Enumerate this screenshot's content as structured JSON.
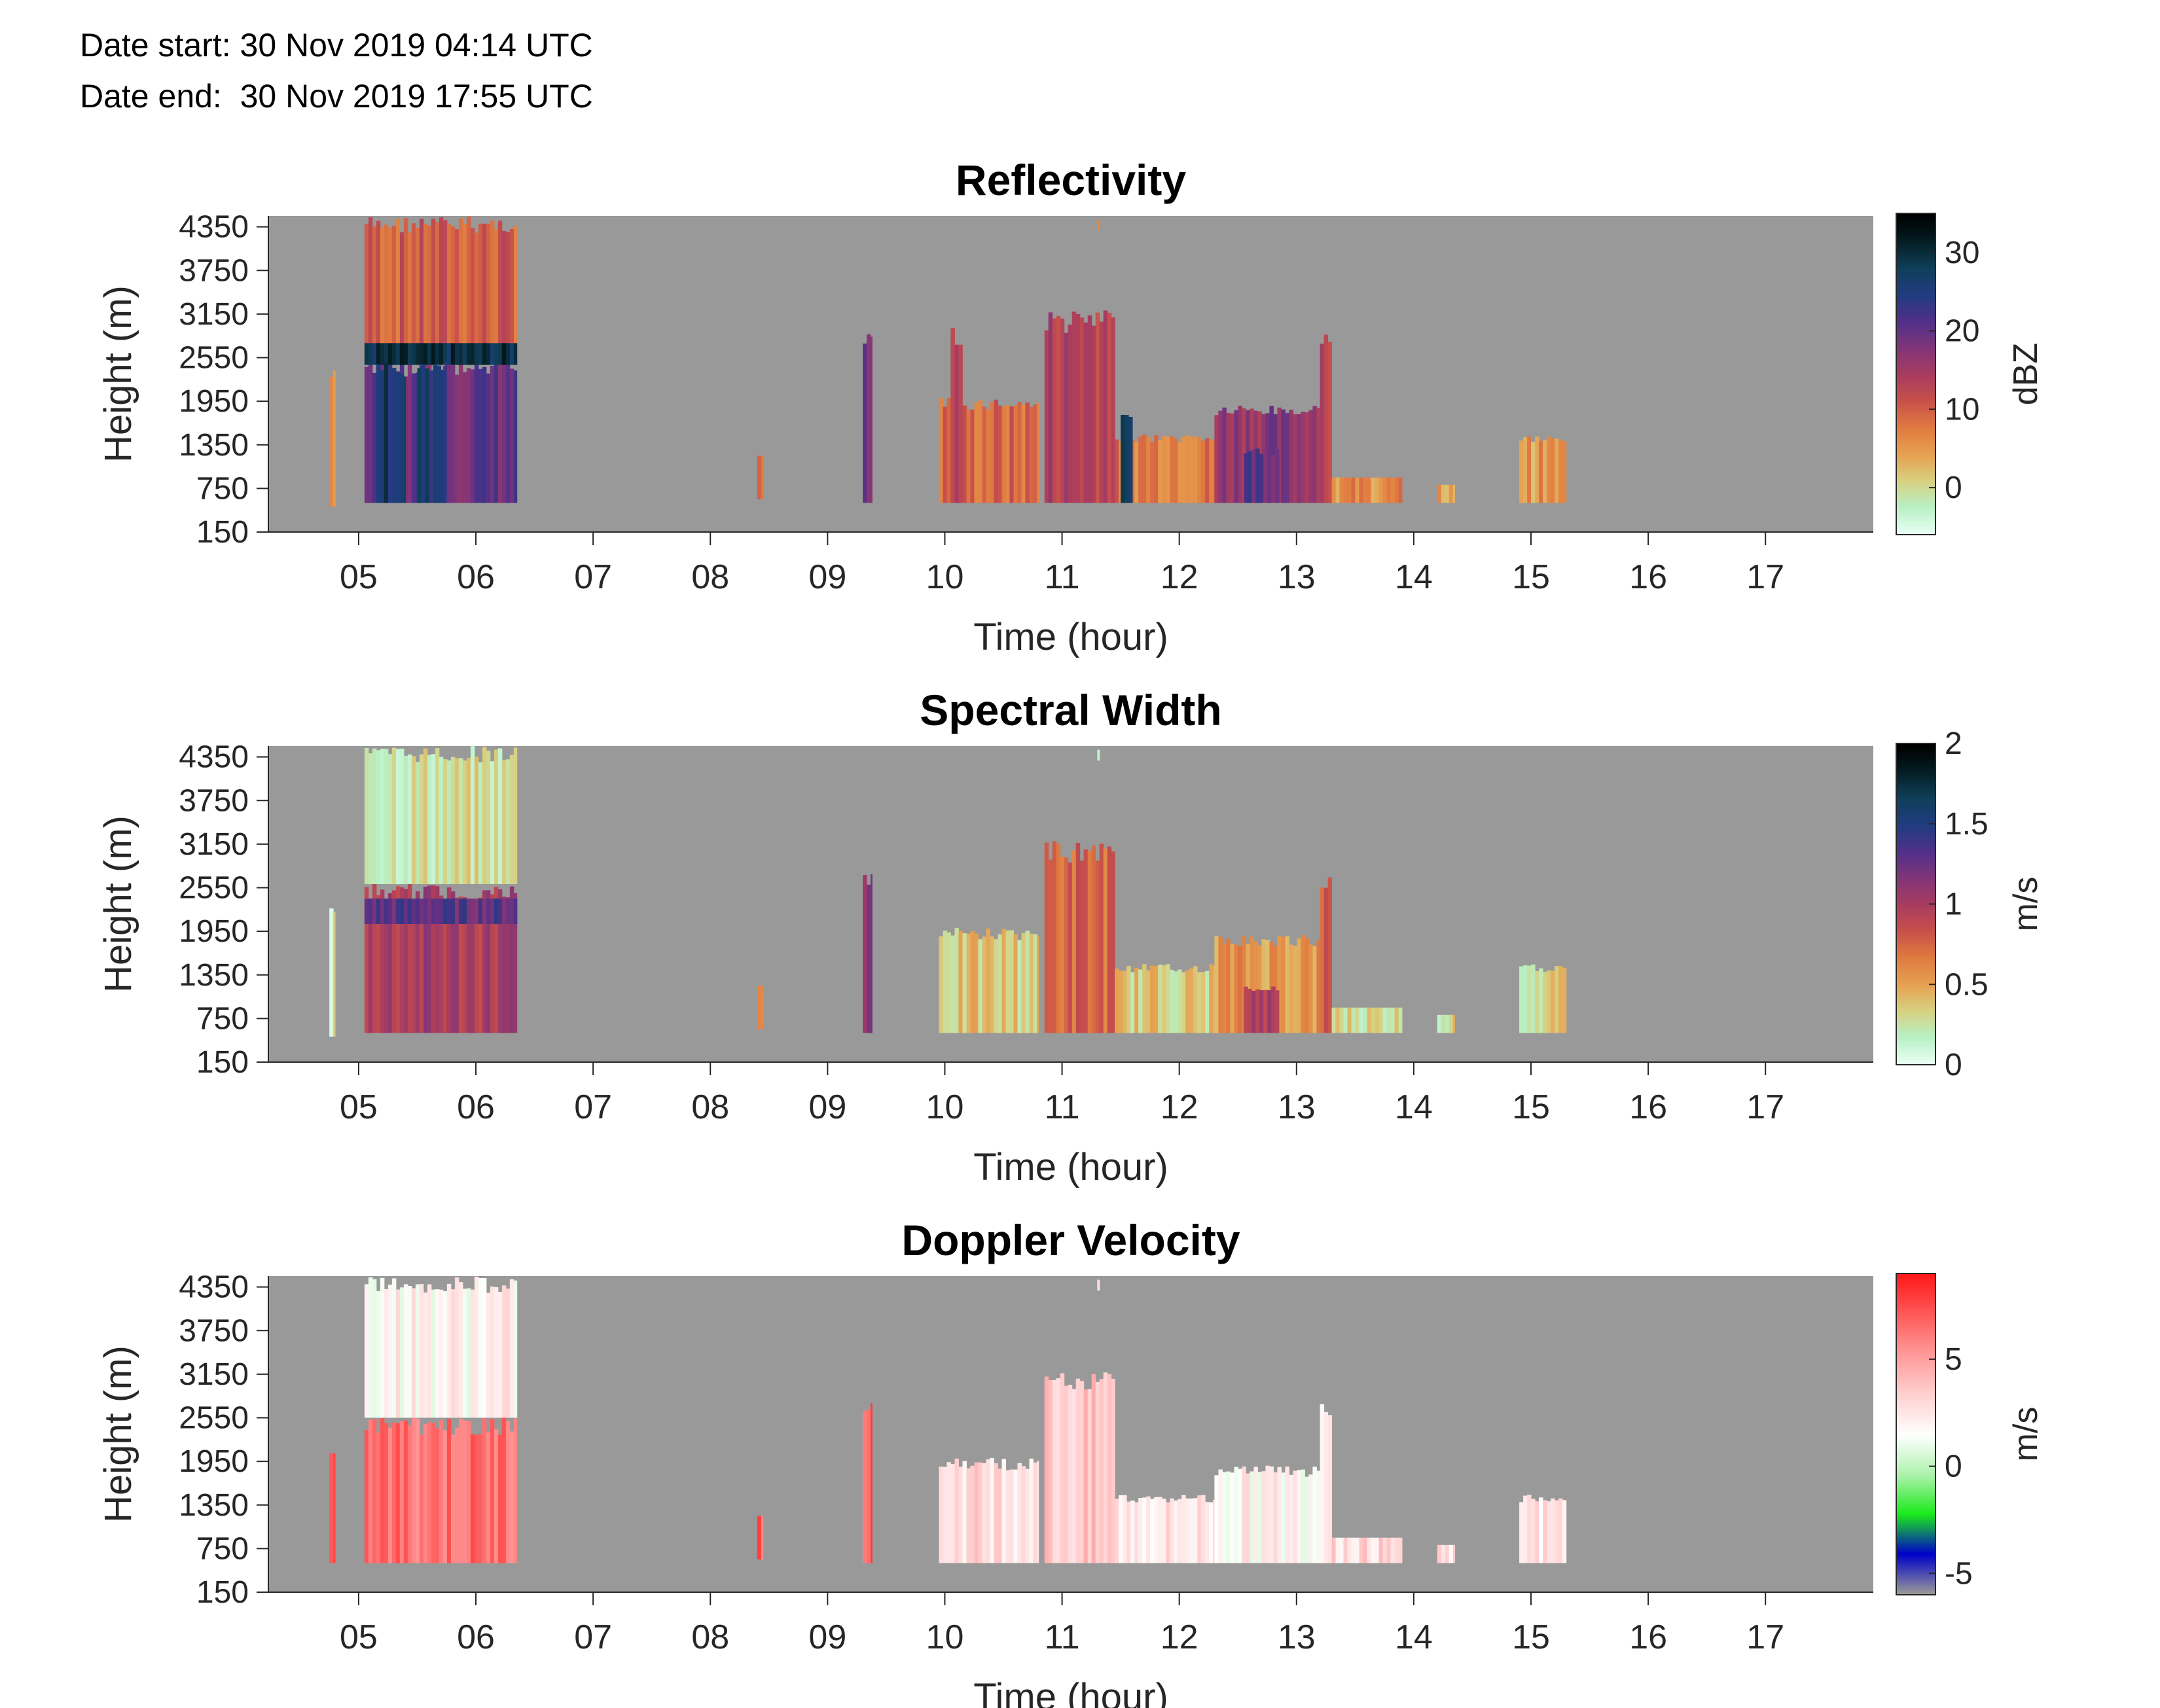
{
  "header": {
    "date_start": "Date start: 30 Nov 2019 04:14 UTC",
    "date_end": "Date end:  30 Nov 2019 17:55 UTC"
  },
  "chart_data": [
    {
      "type": "heatmap",
      "title": "Reflectivity",
      "xlabel": "Time (hour)",
      "ylabel": "Height (m)",
      "x_ticks": [
        "05",
        "06",
        "07",
        "08",
        "09",
        "10",
        "11",
        "12",
        "13",
        "14",
        "15",
        "16",
        "17"
      ],
      "y_ticks": [
        "150",
        "750",
        "1350",
        "1950",
        "2550",
        "3150",
        "3750",
        "4350"
      ],
      "xlim": [
        4.23,
        17.92
      ],
      "ylim": [
        150,
        4500
      ],
      "colorbar": {
        "label": "dBZ",
        "ticks": [
          "0",
          "10",
          "20",
          "30"
        ],
        "range": [
          -6,
          35
        ]
      },
      "missing_color": "#999999",
      "colormap": [
        "#e8fff4",
        "#b8f0c4",
        "#d8d080",
        "#e6a050",
        "#e07a40",
        "#c8504a",
        "#a83c60",
        "#803578",
        "#50308a",
        "#203c80",
        "#103f5a",
        "#041e24",
        "#000000"
      ],
      "regions": [
        {
          "t": [
            4.75,
            4.8
          ],
          "h": [
            500,
            2400
          ],
          "v": 6
        },
        {
          "t": [
            5.05,
            6.35
          ],
          "h": [
            2500,
            4500
          ],
          "v": 10
        },
        {
          "t": [
            5.05,
            6.35
          ],
          "h": [
            550,
            2500
          ],
          "v": 20
        },
        {
          "t": [
            5.05,
            6.35
          ],
          "h": [
            2450,
            2750
          ],
          "v": 29
        },
        {
          "t": [
            5.15,
            5.4
          ],
          "h": [
            550,
            2500
          ],
          "v": 27
        },
        {
          "t": [
            5.5,
            5.75
          ],
          "h": [
            550,
            2500
          ],
          "v": 26
        },
        {
          "t": [
            8.4,
            8.45
          ],
          "h": [
            600,
            1200
          ],
          "v": 8
        },
        {
          "t": [
            9.3,
            9.38
          ],
          "h": [
            550,
            2900
          ],
          "v": 18
        },
        {
          "t": [
            9.95,
            10.8
          ],
          "h": [
            550,
            2000
          ],
          "v": 9
        },
        {
          "t": [
            10.05,
            10.15
          ],
          "h": [
            550,
            3000
          ],
          "v": 13
        },
        {
          "t": [
            10.85,
            11.45
          ],
          "h": [
            550,
            3200
          ],
          "v": 14
        },
        {
          "t": [
            11.45,
            12.3
          ],
          "h": [
            550,
            1500
          ],
          "v": 8
        },
        {
          "t": [
            11.5,
            11.6
          ],
          "h": [
            550,
            1800
          ],
          "v": 27
        },
        {
          "t": [
            12.3,
            13.3
          ],
          "h": [
            550,
            1900
          ],
          "v": 17
        },
        {
          "t": [
            12.55,
            12.85
          ],
          "h": [
            550,
            1300
          ],
          "v": 21
        },
        {
          "t": [
            13.2,
            13.3
          ],
          "h": [
            550,
            2900
          ],
          "v": 14
        },
        {
          "t": [
            13.3,
            13.9
          ],
          "h": [
            550,
            900
          ],
          "v": 6
        },
        {
          "t": [
            14.2,
            14.35
          ],
          "h": [
            550,
            800
          ],
          "v": 4
        },
        {
          "t": [
            14.9,
            15.3
          ],
          "h": [
            550,
            1500
          ],
          "v": 5
        },
        {
          "t": [
            11.3,
            11.32
          ],
          "h": [
            4300,
            4450
          ],
          "v": 5
        }
      ]
    },
    {
      "type": "heatmap",
      "title": "Spectral Width",
      "xlabel": "Time (hour)",
      "ylabel": "Height (m)",
      "x_ticks": [
        "05",
        "06",
        "07",
        "08",
        "09",
        "10",
        "11",
        "12",
        "13",
        "14",
        "15",
        "16",
        "17"
      ],
      "y_ticks": [
        "150",
        "750",
        "1350",
        "1950",
        "2550",
        "3150",
        "3750",
        "4350"
      ],
      "xlim": [
        4.23,
        17.92
      ],
      "ylim": [
        150,
        4500
      ],
      "colorbar": {
        "label": "m/s",
        "ticks": [
          "0",
          "0.5",
          "1",
          "1.5",
          "2"
        ],
        "range": [
          0,
          2
        ]
      },
      "missing_color": "#999999",
      "colormap": [
        "#e8fff4",
        "#b8f0c4",
        "#d8d080",
        "#e6a050",
        "#e07a40",
        "#c8504a",
        "#a83c60",
        "#803578",
        "#50308a",
        "#203c80",
        "#103f5a",
        "#041e24",
        "#000000"
      ],
      "regions": [
        {
          "t": [
            4.75,
            4.8
          ],
          "h": [
            500,
            2400
          ],
          "v": 0.2
        },
        {
          "t": [
            5.05,
            6.35
          ],
          "h": [
            2600,
            4500
          ],
          "v": 0.25
        },
        {
          "t": [
            5.05,
            6.35
          ],
          "h": [
            550,
            2600
          ],
          "v": 1.0
        },
        {
          "t": [
            5.05,
            6.35
          ],
          "h": [
            2050,
            2400
          ],
          "v": 1.3
        },
        {
          "t": [
            8.4,
            8.45
          ],
          "h": [
            600,
            1200
          ],
          "v": 0.6
        },
        {
          "t": [
            9.3,
            9.38
          ],
          "h": [
            550,
            2800
          ],
          "v": 1.2
        },
        {
          "t": [
            9.95,
            10.8
          ],
          "h": [
            550,
            2000
          ],
          "v": 0.35
        },
        {
          "t": [
            10.85,
            11.45
          ],
          "h": [
            550,
            3200
          ],
          "v": 0.75
        },
        {
          "t": [
            11.45,
            12.3
          ],
          "h": [
            550,
            1500
          ],
          "v": 0.35
        },
        {
          "t": [
            12.3,
            13.3
          ],
          "h": [
            550,
            1900
          ],
          "v": 0.55
        },
        {
          "t": [
            12.55,
            12.85
          ],
          "h": [
            550,
            1200
          ],
          "v": 1.0
        },
        {
          "t": [
            13.2,
            13.3
          ],
          "h": [
            550,
            2800
          ],
          "v": 0.8
        },
        {
          "t": [
            13.3,
            13.9
          ],
          "h": [
            550,
            900
          ],
          "v": 0.3
        },
        {
          "t": [
            14.2,
            14.35
          ],
          "h": [
            550,
            800
          ],
          "v": 0.3
        },
        {
          "t": [
            14.9,
            15.3
          ],
          "h": [
            550,
            1500
          ],
          "v": 0.3
        },
        {
          "t": [
            11.3,
            11.32
          ],
          "h": [
            4300,
            4450
          ],
          "v": 0.2
        }
      ]
    },
    {
      "type": "heatmap",
      "title": "Doppler Velocity",
      "xlabel": "Time (hour)",
      "ylabel": "Height (m)",
      "x_ticks": [
        "05",
        "06",
        "07",
        "08",
        "09",
        "10",
        "11",
        "12",
        "13",
        "14",
        "15",
        "16",
        "17"
      ],
      "y_ticks": [
        "150",
        "750",
        "1350",
        "1950",
        "2550",
        "3150",
        "3750",
        "4350"
      ],
      "xlim": [
        4.23,
        17.92
      ],
      "ylim": [
        150,
        4500
      ],
      "colorbar": {
        "label": "m/s",
        "ticks": [
          "-5",
          "0",
          "5"
        ],
        "range": [
          -6,
          9
        ]
      },
      "missing_color": "#999999",
      "colormap": [
        "#999999",
        "#0000c8",
        "#1bea1b",
        "#aef2ae",
        "#ffffff",
        "#ffd0d0",
        "#ff9a9a",
        "#ff5a5a",
        "#ff1a1a"
      ],
      "regions": [
        {
          "t": [
            4.75,
            4.8
          ],
          "h": [
            550,
            2200
          ],
          "v": 7
        },
        {
          "t": [
            5.05,
            6.35
          ],
          "h": [
            2550,
            4500
          ],
          "v": 2
        },
        {
          "t": [
            5.05,
            6.35
          ],
          "h": [
            550,
            2550
          ],
          "v": 6.5
        },
        {
          "t": [
            8.4,
            8.45
          ],
          "h": [
            600,
            1200
          ],
          "v": 7
        },
        {
          "t": [
            9.3,
            9.38
          ],
          "h": [
            550,
            2800
          ],
          "v": 7
        },
        {
          "t": [
            9.95,
            10.8
          ],
          "h": [
            550,
            2000
          ],
          "v": 3
        },
        {
          "t": [
            10.85,
            11.45
          ],
          "h": [
            550,
            3200
          ],
          "v": 3.5
        },
        {
          "t": [
            11.45,
            12.3
          ],
          "h": [
            550,
            1500
          ],
          "v": 2.5
        },
        {
          "t": [
            12.3,
            13.3
          ],
          "h": [
            550,
            1900
          ],
          "v": 2
        },
        {
          "t": [
            13.2,
            13.3
          ],
          "h": [
            550,
            2800
          ],
          "v": 3
        },
        {
          "t": [
            13.3,
            13.9
          ],
          "h": [
            550,
            900
          ],
          "v": 3
        },
        {
          "t": [
            14.2,
            14.35
          ],
          "h": [
            550,
            800
          ],
          "v": 2.5
        },
        {
          "t": [
            14.9,
            15.3
          ],
          "h": [
            550,
            1500
          ],
          "v": 2.5
        },
        {
          "t": [
            11.3,
            11.32
          ],
          "h": [
            4300,
            4450
          ],
          "v": 4
        }
      ]
    }
  ]
}
